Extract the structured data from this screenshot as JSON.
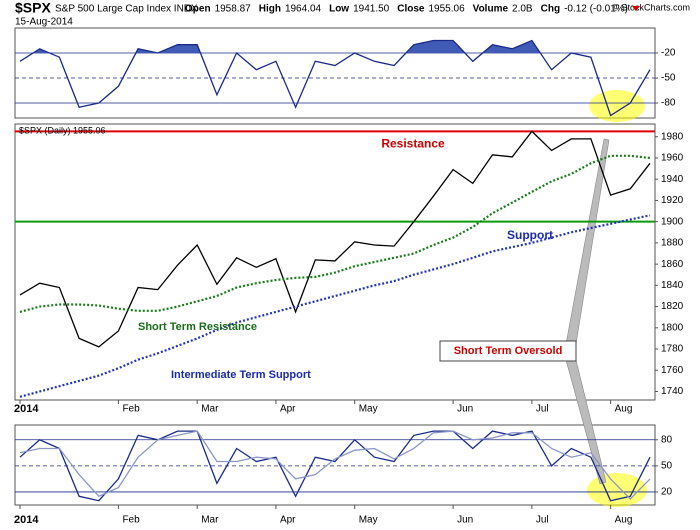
{
  "header": {
    "symbol": "$SPX",
    "name": "S&P 500 Large Cap Index INDX",
    "date": "15-Aug-2014",
    "quote": [
      {
        "label": "Open",
        "value": "1958.87"
      },
      {
        "label": "High",
        "value": "1964.04"
      },
      {
        "label": "Low",
        "value": "1941.50"
      },
      {
        "label": "Close",
        "value": "1955.06"
      },
      {
        "label": "Volume",
        "value": "2.0B"
      },
      {
        "label": "Chg",
        "value": "-0.12 (-0.01%)"
      }
    ],
    "credit": "© StockCharts.com"
  },
  "chart_data": [
    {
      "type": "line",
      "ylim": [
        -98,
        10
      ],
      "yticks": [
        -20,
        -50,
        -80
      ],
      "grid": true,
      "grid_color": "#1a2a8a",
      "grid_dashed": [
        false,
        true,
        false
      ],
      "fill_above": -20,
      "fill_color": "#3f5bb5",
      "series": [
        {
          "color": "#1a2a8a",
          "values": [
            -30,
            -15,
            -25,
            -85,
            -80,
            -60,
            -15,
            -20,
            -10,
            -10,
            -70,
            -20,
            -40,
            -30,
            -85,
            -30,
            -35,
            -20,
            -30,
            -35,
            -10,
            -5,
            -5,
            -30,
            -10,
            -15,
            -5,
            -40,
            -20,
            -25,
            -95,
            -80,
            -40
          ]
        }
      ]
    },
    {
      "type": "line",
      "ylim": [
        1732,
        1992
      ],
      "yticks": [
        1740,
        1760,
        1780,
        1800,
        1820,
        1840,
        1860,
        1880,
        1900,
        1920,
        1940,
        1960,
        1980
      ],
      "grid": false,
      "categories": [
        "2014",
        null,
        null,
        null,
        null,
        "Feb",
        null,
        null,
        null,
        "Mar",
        null,
        null,
        null,
        "Apr",
        null,
        null,
        null,
        "May",
        null,
        null,
        null,
        null,
        "Jun",
        null,
        null,
        null,
        "Jul",
        null,
        null,
        null,
        "Aug",
        null,
        null
      ],
      "series": [
        {
          "name": "$SPX (Daily) 1955.06",
          "color": "#000000",
          "values": [
            1831,
            1842,
            1838,
            1790,
            1782,
            1797,
            1838,
            1836,
            1859,
            1878,
            1841,
            1866,
            1857,
            1865,
            1815,
            1864,
            1863,
            1881,
            1878,
            1877,
            1900,
            1924,
            1949,
            1936,
            1963,
            1961,
            1985,
            1967,
            1978,
            1978,
            1925,
            1931,
            1955
          ]
        },
        {
          "color": "#1a7a1a",
          "dash": true,
          "values": [
            1815,
            1820,
            1822,
            1822,
            1821,
            1818,
            1816,
            1816,
            1820,
            1825,
            1830,
            1838,
            1842,
            1845,
            1847,
            1848,
            1852,
            1858,
            1862,
            1866,
            1870,
            1878,
            1885,
            1895,
            1908,
            1918,
            1928,
            1938,
            1945,
            1955,
            1962,
            1962,
            1960
          ]
        },
        {
          "color": "#2233bb",
          "dash": true,
          "values": [
            1735,
            1740,
            1745,
            1750,
            1755,
            1762,
            1770,
            1776,
            1783,
            1790,
            1798,
            1805,
            1810,
            1815,
            1820,
            1825,
            1830,
            1835,
            1840,
            1844,
            1850,
            1855,
            1860,
            1866,
            1872,
            1876,
            1880,
            1885,
            1890,
            1894,
            1898,
            1902,
            1906
          ]
        }
      ],
      "hlines": [
        {
          "value": 1985,
          "color": "#e00000",
          "label": "Resistance",
          "label_color": "#cc0000"
        },
        {
          "value": 1900,
          "color": "#0a9a0a",
          "label": "Support",
          "label_color": "#1a2aaa"
        }
      ],
      "annotations": [
        {
          "text": "Short Term Resistance",
          "color": "#1a6a1a"
        },
        {
          "text": "Intermediate Term Support",
          "color": "#1a2aaa"
        },
        {
          "text": "Short Term Oversold",
          "color": "#cc0000"
        }
      ]
    },
    {
      "type": "line",
      "ylim": [
        5,
        97
      ],
      "yticks": [
        20,
        50,
        80
      ],
      "grid": true,
      "grid_color": "#1a2a8a",
      "grid_dashed": [
        false,
        true,
        false
      ],
      "categories": [
        "2014",
        null,
        null,
        null,
        null,
        "Feb",
        null,
        null,
        null,
        "Mar",
        null,
        null,
        null,
        "Apr",
        null,
        null,
        null,
        "May",
        null,
        null,
        null,
        null,
        "Jun",
        null,
        null,
        null,
        "Jul",
        null,
        null,
        null,
        "Aug",
        null,
        null
      ],
      "series": [
        {
          "color": "#1a2a8a",
          "values": [
            60,
            80,
            70,
            15,
            10,
            35,
            85,
            80,
            90,
            90,
            30,
            70,
            55,
            60,
            15,
            60,
            55,
            80,
            60,
            55,
            85,
            90,
            90,
            70,
            90,
            85,
            90,
            50,
            70,
            60,
            10,
            15,
            60
          ]
        },
        {
          "color": "#8a96c8",
          "values": [
            65,
            70,
            70,
            40,
            15,
            25,
            60,
            80,
            85,
            90,
            55,
            55,
            60,
            58,
            35,
            40,
            58,
            68,
            70,
            58,
            70,
            88,
            90,
            80,
            82,
            88,
            88,
            70,
            60,
            65,
            35,
            12,
            35
          ]
        }
      ]
    }
  ]
}
